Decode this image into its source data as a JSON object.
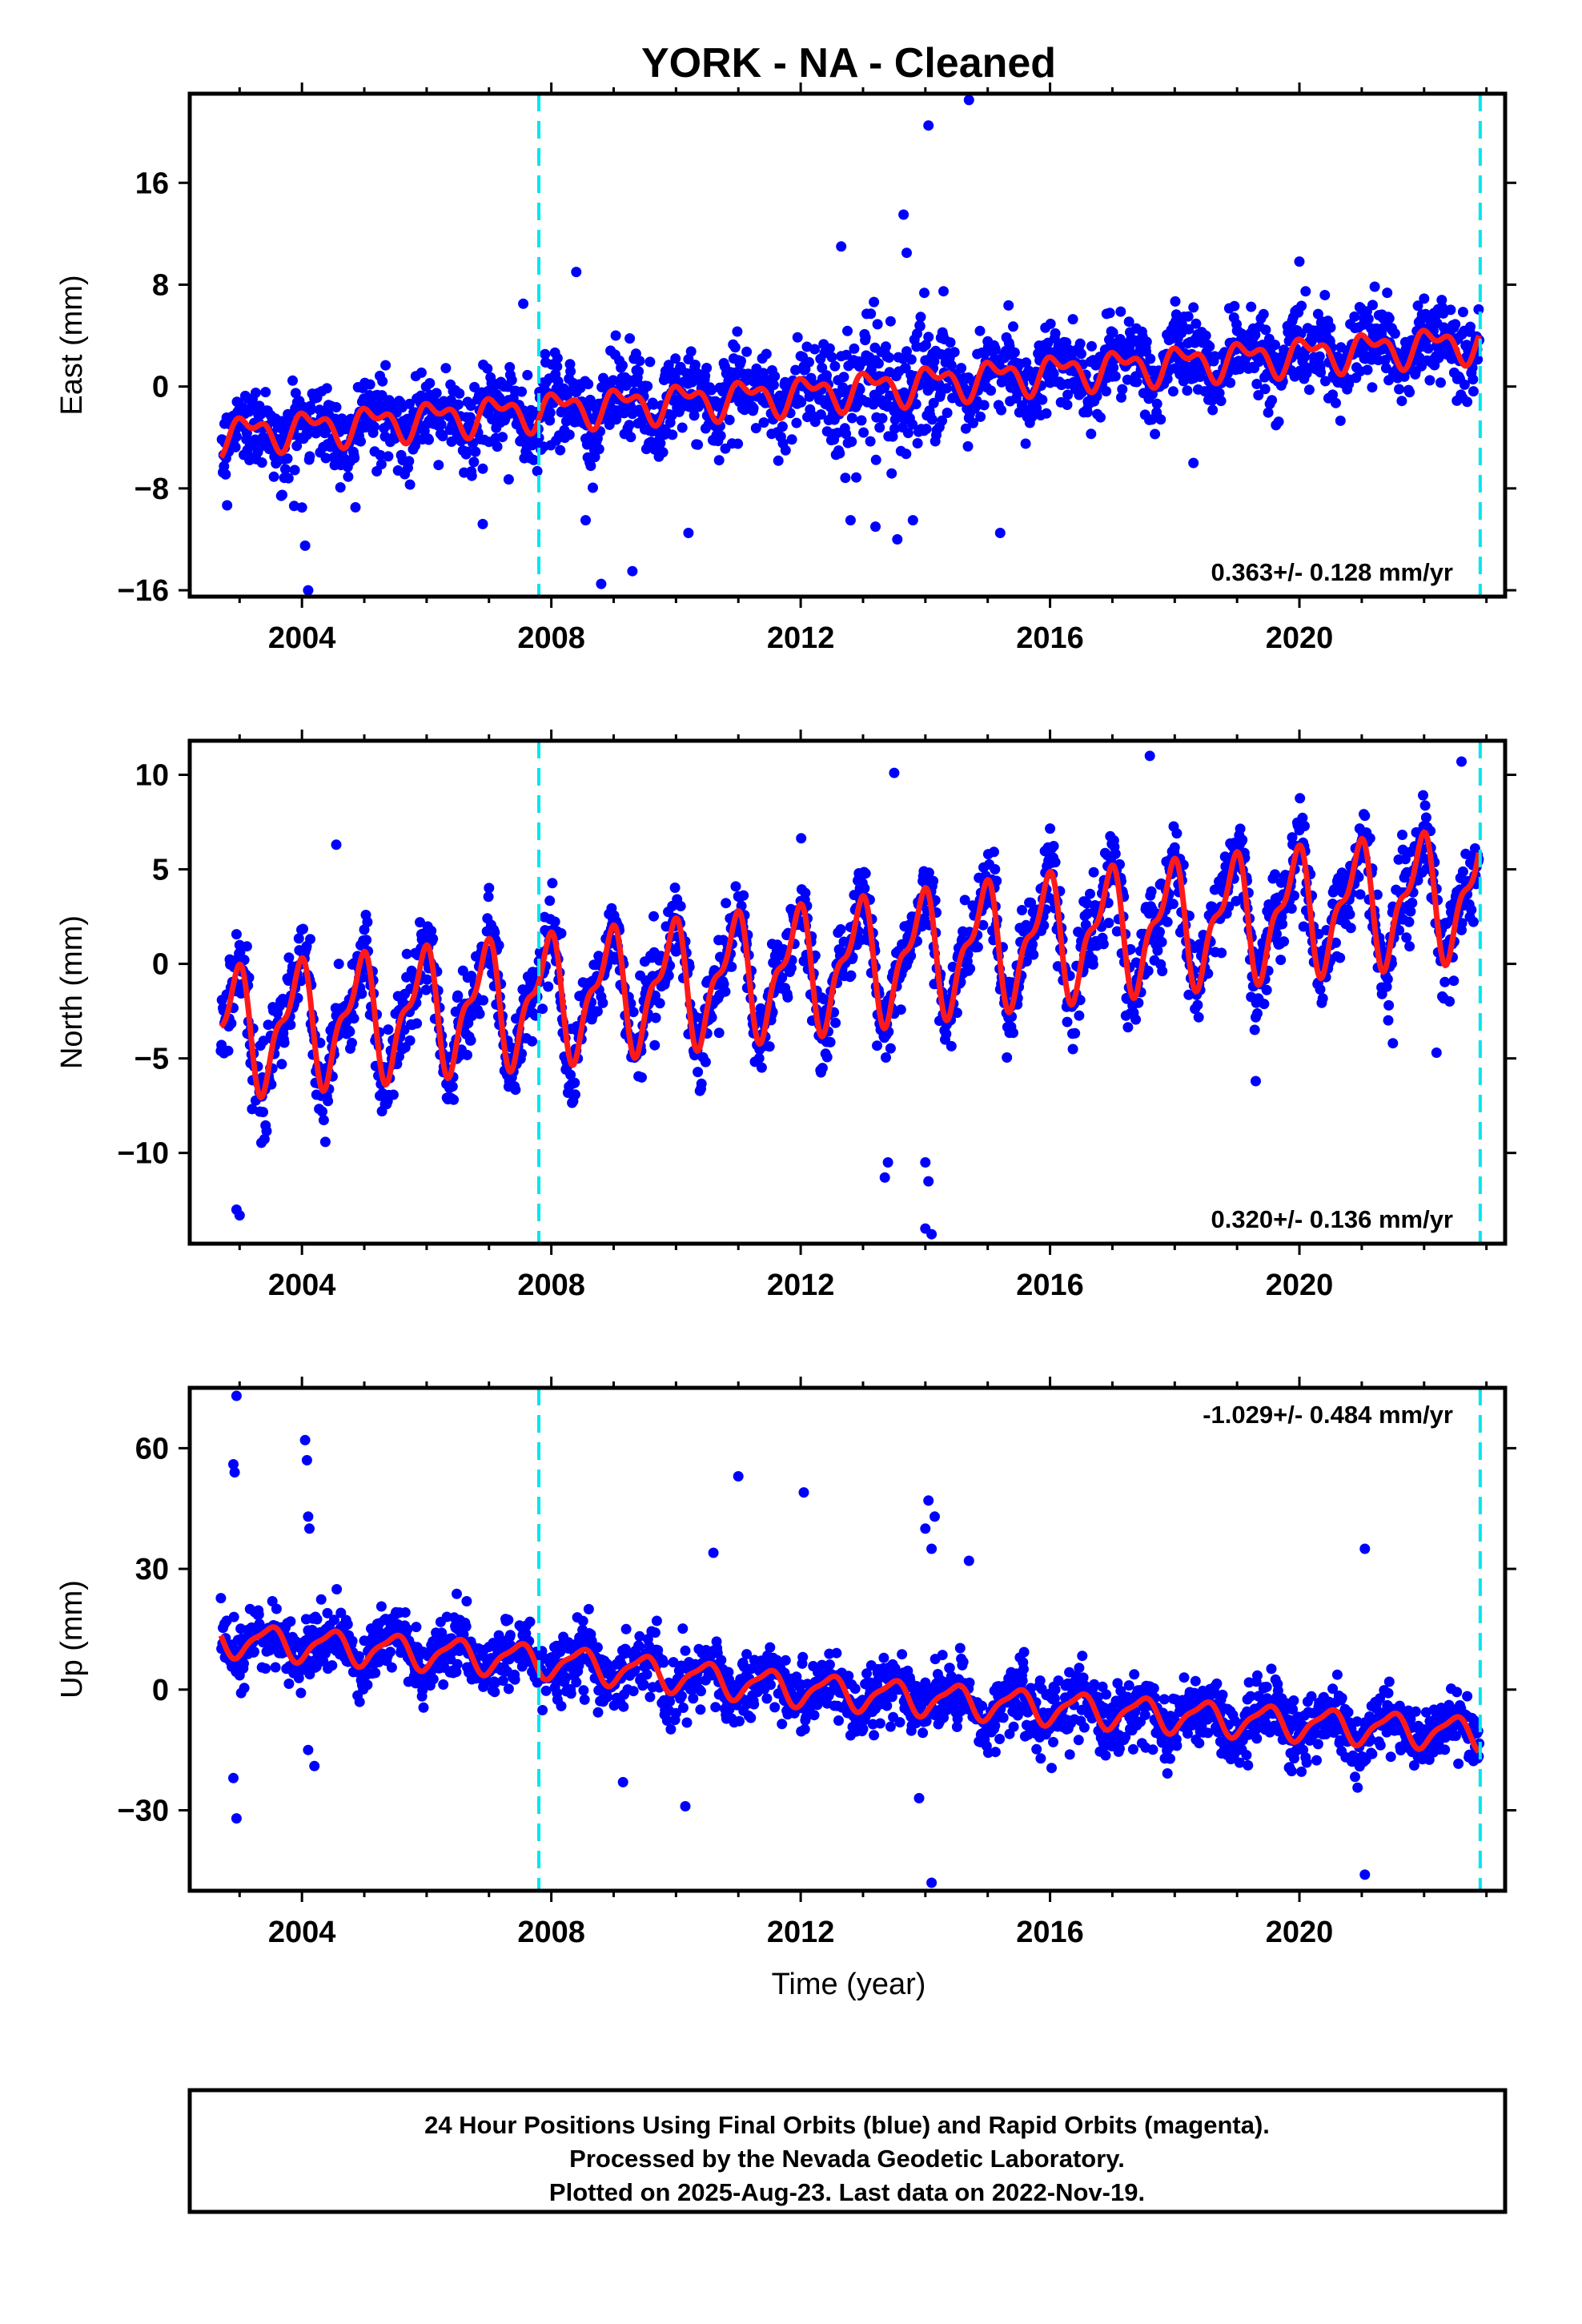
{
  "chart_data": {
    "type": "scatter",
    "title": "YORK  - NA - Cleaned",
    "xlabel": "Time (year)",
    "xlim": [
      2002.2,
      2023.3
    ],
    "x_ticks": [
      2004,
      2008,
      2012,
      2016,
      2020
    ],
    "x_tick_labels": [
      "2004",
      "2008",
      "2012",
      "2016",
      "2020"
    ],
    "equipment_change_lines": [
      2007.8,
      2022.9
    ],
    "data_span": [
      2002.7,
      2022.89
    ],
    "colors": {
      "points": "#0000ff",
      "model": "#ff1a1a",
      "vlines": "#00e5ee",
      "frame": "#000000"
    },
    "panels": [
      {
        "ylabel": "East (mm)",
        "ylim": [
          -16.5,
          23
        ],
        "y_ticks": [
          16,
          8,
          0,
          -8,
          -16
        ],
        "y_tick_labels": [
          "16",
          "8",
          "0",
          "−8",
          "−16"
        ],
        "rate": "0.363+/- 0.128 mm/yr",
        "rate_position": "bottom-right",
        "model_trend": [
          [
            2002.7,
            -3.8
          ],
          [
            2008.0,
            -1.8
          ],
          [
            2012.0,
            -0.6
          ],
          [
            2016.0,
            1.1
          ],
          [
            2020.0,
            2.5
          ],
          [
            2022.9,
            3.5
          ]
        ],
        "seasonal_amplitude_mm": 1.6,
        "scatter_sigma_mm": 1.6,
        "outliers": [
          [
            2014.05,
            20.5
          ],
          [
            2014.7,
            22.5
          ],
          [
            2013.65,
            13.5
          ],
          [
            2013.7,
            10.5
          ],
          [
            2012.65,
            11.0
          ],
          [
            2008.4,
            9.0
          ],
          [
            2007.55,
            6.5
          ],
          [
            2008.8,
            -15.5
          ],
          [
            2009.3,
            -14.5
          ],
          [
            2004.05,
            -12.5
          ],
          [
            2004.1,
            -16.0
          ],
          [
            2004.0,
            -9.5
          ],
          [
            2006.9,
            -10.8
          ],
          [
            2008.55,
            -10.5
          ],
          [
            2010.2,
            -11.5
          ],
          [
            2012.8,
            -10.5
          ],
          [
            2013.2,
            -11.0
          ],
          [
            2013.55,
            -12.0
          ],
          [
            2013.8,
            -10.5
          ],
          [
            2015.2,
            -11.5
          ],
          [
            2018.3,
            -6.0
          ]
        ]
      },
      {
        "ylabel": "North (mm)",
        "ylim": [
          -14.8,
          11.8
        ],
        "y_ticks": [
          10,
          5,
          0,
          -5,
          -10
        ],
        "y_tick_labels": [
          "10",
          "5",
          "0",
          "−5",
          "−10"
        ],
        "rate": "0.320+/- 0.136 mm/yr",
        "rate_position": "bottom-right",
        "model_trend": [
          [
            2002.7,
            -3.6
          ],
          [
            2008.0,
            -1.8
          ],
          [
            2012.0,
            -0.3
          ],
          [
            2016.0,
            1.4
          ],
          [
            2020.0,
            2.8
          ],
          [
            2022.9,
            3.8
          ]
        ],
        "seasonal_amplitude_mm": 3.6,
        "scatter_sigma_mm": 1.1,
        "outliers": [
          [
            2002.95,
            -13.0
          ],
          [
            2003.0,
            -13.3
          ],
          [
            2004.55,
            6.3
          ],
          [
            2013.4,
            -10.5
          ],
          [
            2013.35,
            -11.3
          ],
          [
            2014.0,
            -10.5
          ],
          [
            2014.05,
            -11.5
          ],
          [
            2014.1,
            -14.3
          ],
          [
            2014.0,
            -14.0
          ],
          [
            2019.3,
            -6.2
          ],
          [
            2021.5,
            -4.2
          ],
          [
            2022.2,
            -4.7
          ],
          [
            2017.6,
            11.0
          ],
          [
            2013.5,
            10.1
          ],
          [
            2022.6,
            10.7
          ]
        ]
      },
      {
        "ylabel": "Up (mm)",
        "ylim": [
          -50,
          75
        ],
        "y_ticks": [
          60,
          30,
          0,
          -30
        ],
        "y_tick_labels": [
          "60",
          "30",
          "0",
          "−30"
        ],
        "rate": "-1.029+/- 0.484 mm/yr",
        "rate_position": "top-right",
        "model_trend": [
          [
            2002.7,
            12.5
          ],
          [
            2008.0,
            7.0
          ],
          [
            2012.0,
            0.0
          ],
          [
            2016.0,
            -4.5
          ],
          [
            2020.0,
            -8.5
          ],
          [
            2022.9,
            -11.0
          ]
        ],
        "seasonal_amplitude_mm": 4.5,
        "scatter_sigma_mm": 4.0,
        "outliers": [
          [
            2002.95,
            73.0
          ],
          [
            2002.9,
            56.0
          ],
          [
            2002.92,
            54.0
          ],
          [
            2004.05,
            62.0
          ],
          [
            2004.08,
            57.0
          ],
          [
            2004.1,
            43.0
          ],
          [
            2004.12,
            40.0
          ],
          [
            2002.9,
            -22.0
          ],
          [
            2002.95,
            -32.0
          ],
          [
            2004.1,
            -15.0
          ],
          [
            2004.2,
            -19.0
          ],
          [
            2011.0,
            53.0
          ],
          [
            2012.05,
            49.0
          ],
          [
            2014.0,
            40.0
          ],
          [
            2014.05,
            47.0
          ],
          [
            2014.1,
            35.0
          ],
          [
            2014.15,
            43.0
          ],
          [
            2010.6,
            34.0
          ],
          [
            2014.7,
            32.0
          ],
          [
            2021.05,
            35.0
          ],
          [
            2014.1,
            -48.0
          ],
          [
            2021.05,
            -46.0
          ],
          [
            2010.15,
            -29.0
          ],
          [
            2013.9,
            -27.0
          ],
          [
            2009.15,
            -23.0
          ]
        ]
      }
    ]
  },
  "caption": {
    "line1": "24 Hour Positions Using Final Orbits (blue) and Rapid Orbits (magenta).",
    "line2": "Processed by the Nevada Geodetic Laboratory.",
    "line3": "Plotted on 2025-Aug-23. Last data on 2022-Nov-19."
  }
}
